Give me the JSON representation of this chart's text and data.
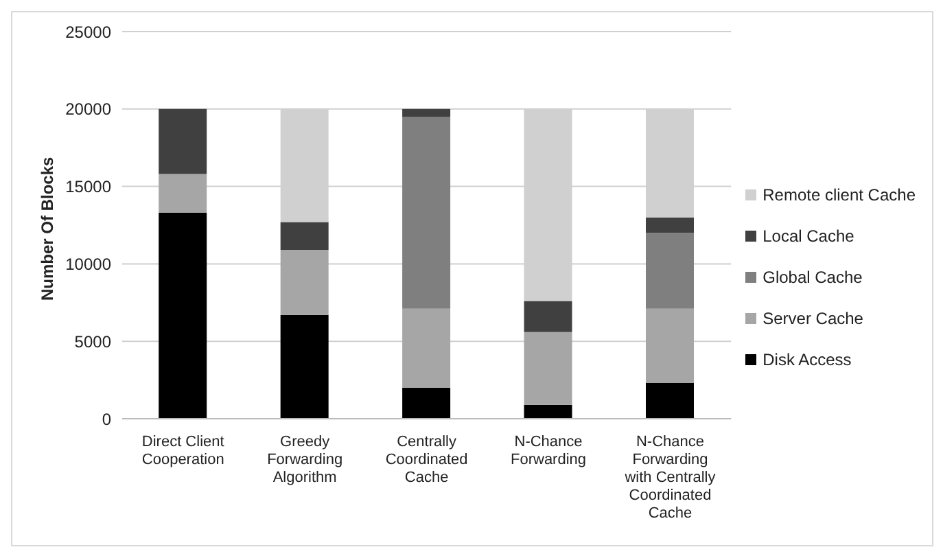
{
  "chart_data": {
    "type": "bar",
    "stacked": true,
    "ylabel": "Number Of Blocks",
    "categories": [
      "Direct Client Cooperation",
      "Greedy Forwarding Algorithm",
      "Centrally Coordinated Cache",
      "N-Chance Forwarding",
      "N-Chance Forwarding with Centrally Coordinated Cache"
    ],
    "series": [
      {
        "name": "Disk Access",
        "color": "#000000",
        "values": [
          13300,
          6700,
          2000,
          900,
          2300
        ]
      },
      {
        "name": "Server Cache",
        "color": "#a6a6a6",
        "values": [
          2500,
          4200,
          5100,
          4700,
          4800
        ]
      },
      {
        "name": "Global Cache",
        "color": "#7f7f7f",
        "values": [
          0,
          0,
          12400,
          0,
          4900
        ]
      },
      {
        "name": "Local Cache",
        "color": "#404040",
        "values": [
          4200,
          1800,
          500,
          2000,
          1000
        ]
      },
      {
        "name": "Remote client Cache",
        "color": "#d0d0d0",
        "values": [
          0,
          7300,
          0,
          12400,
          7000
        ]
      }
    ],
    "ylim": [
      0,
      25000
    ],
    "yticks": [
      0,
      5000,
      10000,
      15000,
      20000,
      25000
    ],
    "grid": "y",
    "legend": "right"
  }
}
